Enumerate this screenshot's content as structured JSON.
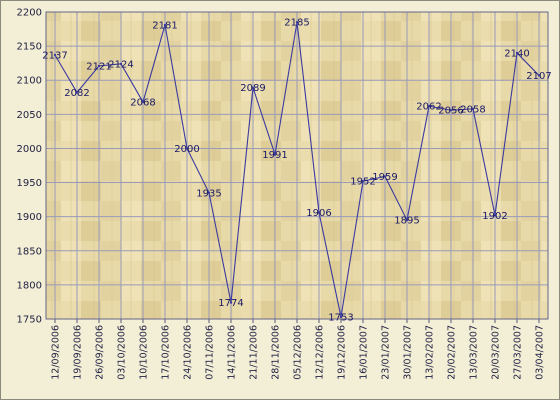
{
  "chart_data": {
    "type": "line",
    "title": "",
    "xlabel": "",
    "ylabel": "",
    "ylim": [
      1750,
      2200
    ],
    "yticks": [
      1750,
      1800,
      1850,
      1900,
      1950,
      2000,
      2050,
      2100,
      2150,
      2200
    ],
    "grid": true,
    "legend": "none",
    "x_tick_labels": [
      "12/09/2006",
      "19/09/2006",
      "26/09/2006",
      "03/10/2006",
      "10/10/2006",
      "17/10/2006",
      "24/10/2006",
      "07/11/2006",
      "14/11/2006",
      "21/11/2006",
      "28/11/2006",
      "05/12/2006",
      "12/12/2006",
      "19/12/2006",
      "16/01/2007",
      "23/01/2007",
      "30/01/2007",
      "13/02/2007",
      "20/02/2007",
      "13/03/2007",
      "20/03/2007",
      "27/03/2007",
      "03/04/2007"
    ],
    "series": [
      {
        "values": [
          2137,
          2082,
          2121,
          2124,
          2068,
          2181,
          2000,
          1935,
          1774,
          2089,
          1991,
          2185,
          1906,
          1753,
          1952,
          1959,
          1895,
          2062,
          2056,
          2058,
          1902,
          2140,
          2107
        ]
      }
    ],
    "colors": {
      "line": "#3a3aa0",
      "grid": "#9a9ab8",
      "text": "#222244",
      "background": "#e4d6a6"
    }
  }
}
